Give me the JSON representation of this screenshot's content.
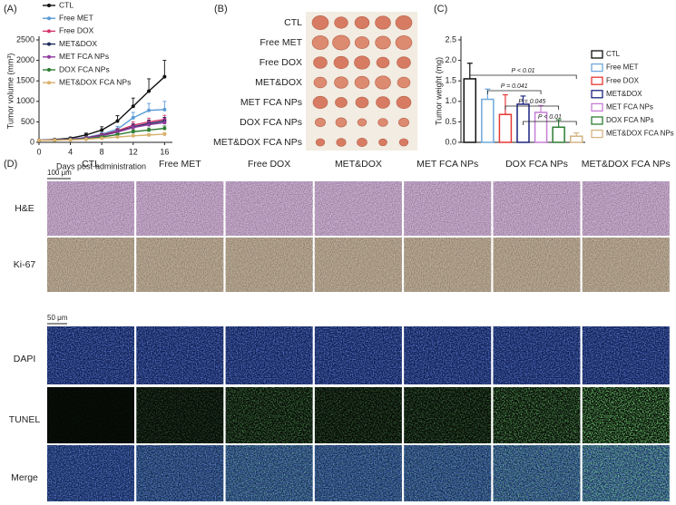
{
  "panel_labels": [
    "(A)",
    "(B)",
    "(C)",
    "(D)"
  ],
  "chart_data": [
    {
      "type": "line",
      "xlabel": "Days post-administration",
      "ylabel": "Tumor volume (mm³)",
      "x": [
        0,
        2,
        4,
        6,
        8,
        10,
        12,
        14,
        16
      ],
      "xlim": [
        0,
        17
      ],
      "ylim": [
        0,
        2500
      ],
      "xticks": [
        0,
        4,
        8,
        12,
        16
      ],
      "yticks": [
        0,
        500,
        1000,
        1500,
        2000,
        2500
      ],
      "series": [
        {
          "name": "CTL",
          "color": "#111111",
          "values": [
            50,
            70,
            100,
            180,
            300,
            520,
            880,
            1250,
            1600
          ],
          "errors": [
            10,
            15,
            25,
            45,
            80,
            130,
            200,
            300,
            400
          ]
        },
        {
          "name": "Free MET",
          "color": "#5b9bd5",
          "values": [
            50,
            60,
            80,
            120,
            200,
            320,
            600,
            780,
            800
          ],
          "errors": [
            8,
            10,
            15,
            25,
            40,
            70,
            130,
            170,
            200
          ]
        },
        {
          "name": "Free DOX",
          "color": "#d6336c",
          "values": [
            50,
            60,
            75,
            110,
            180,
            280,
            420,
            500,
            560
          ],
          "errors": [
            8,
            10,
            15,
            20,
            35,
            55,
            80,
            90,
            100
          ]
        },
        {
          "name": "MET&DOX",
          "color": "#1f2a5a",
          "values": [
            50,
            60,
            75,
            105,
            170,
            260,
            380,
            460,
            520
          ],
          "errors": [
            8,
            10,
            14,
            20,
            30,
            50,
            70,
            80,
            90
          ]
        },
        {
          "name": "MET FCA NPs",
          "color": "#8e3a9e",
          "values": [
            50,
            58,
            72,
            100,
            160,
            250,
            360,
            430,
            480
          ],
          "errors": [
            8,
            10,
            14,
            18,
            30,
            45,
            60,
            70,
            80
          ]
        },
        {
          "name": "DOX FCA NPs",
          "color": "#2e7d32",
          "values": [
            50,
            55,
            65,
            85,
            130,
            190,
            260,
            300,
            340
          ],
          "errors": [
            6,
            8,
            10,
            15,
            25,
            35,
            45,
            50,
            60
          ]
        },
        {
          "name": "MET&DOX FCA NPs",
          "color": "#d9b26f",
          "values": [
            50,
            52,
            60,
            75,
            100,
            130,
            160,
            180,
            200
          ],
          "errors": [
            5,
            6,
            8,
            10,
            15,
            20,
            25,
            30,
            35
          ]
        }
      ]
    },
    {
      "type": "bar",
      "ylabel": "Tumor weight (mg)",
      "categories": [
        "CTL",
        "Free MET",
        "Free DOX",
        "MET&DOX",
        "MET FCA NPs",
        "DOX FCA NPs",
        "MET&DOX FCA NPs"
      ],
      "values": [
        1.55,
        1.05,
        0.68,
        0.93,
        0.73,
        0.37,
        0.15
      ],
      "errors": [
        0.38,
        0.25,
        0.48,
        0.2,
        0.17,
        0.18,
        0.08
      ],
      "colors": [
        "#111111",
        "#6fa8dc",
        "#e53935",
        "#1a237e",
        "#c77dd6",
        "#2e7d32",
        "#d4b483"
      ],
      "ylim": [
        0,
        2.5
      ],
      "yticks": [
        {
          "value": 0,
          "label": "0.0"
        },
        0.5,
        {
          "value": 1,
          "label": "1.0"
        },
        1.5,
        {
          "value": 2,
          "label": "2.0"
        },
        2.5
      ],
      "annotations": [
        "P < 0.01",
        "P = 0.041",
        "P = 0.045",
        "P < 0.01"
      ]
    }
  ],
  "photo_panel": {
    "row_labels": [
      "CTL",
      "Free MET",
      "Free DOX",
      "MET&DOX",
      "MET FCA NPs",
      "DOX FCA NPs",
      "MET&DOX FCA NPs"
    ]
  },
  "micrograph_panel": {
    "column_labels": [
      "CTL",
      "Free MET",
      "Free DOX",
      "MET&DOX",
      "MET FCA NPs",
      "DOX FCA NPs",
      "MET&DOX FCA NPs"
    ],
    "row_labels": [
      "H&E",
      "Ki-67",
      "DAPI",
      "TUNEL",
      "Merge"
    ],
    "scale_bars": [
      "100 μm",
      "50 μm"
    ]
  }
}
